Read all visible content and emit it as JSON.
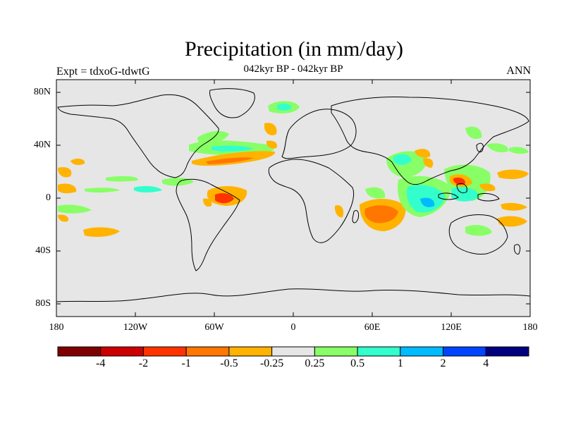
{
  "map": {
    "title": "Precipitation (in mm/day)",
    "experiment": "Expt = tdxoG-tdwtG",
    "period": "042kyr BP - 042kyr BP",
    "season": "ANN",
    "background_color": "#e6e6e6",
    "lat_labels": [
      "80N",
      "40N",
      "0",
      "40S",
      "80S"
    ],
    "lon_labels": [
      "180",
      "120W",
      "60W",
      "0",
      "60E",
      "120E",
      "180"
    ]
  },
  "colorbar": {
    "colors": [
      "#7f0000",
      "#cc0000",
      "#ff3300",
      "#ff7700",
      "#ffb300",
      "#e6e6e6",
      "#88ff66",
      "#33ffcc",
      "#00bbff",
      "#0044ff",
      "#000080"
    ],
    "labels": [
      "-4",
      "-2",
      "-1",
      "-0.5",
      "-0.25",
      "0.25",
      "0.5",
      "1",
      "2",
      "4"
    ]
  },
  "anomaly_regions": [
    {
      "name": "north-atlantic-positive",
      "level": "0.5",
      "color": "#33ffcc"
    },
    {
      "name": "north-atlantic-negative",
      "level": "-0.5",
      "color": "#ff7700"
    },
    {
      "name": "tropical-atlantic-negative",
      "level": "-1",
      "color": "#ff3300"
    },
    {
      "name": "south-indian-ocean-negative",
      "level": "-0.5",
      "color": "#ff7700"
    },
    {
      "name": "east-indian-ocean-positive",
      "level": "1",
      "color": "#00bbff"
    },
    {
      "name": "west-pacific-negative",
      "level": "-1",
      "color": "#ff3300"
    }
  ]
}
